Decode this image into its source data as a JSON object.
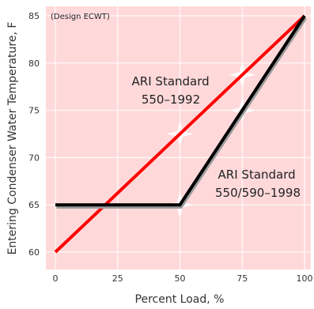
{
  "chart_data": {
    "type": "line",
    "xlabel": "Percent Load, %",
    "ylabel": "Entering Condenser Water Temperature, F",
    "xlim": [
      0,
      100
    ],
    "ylim": [
      59,
      86
    ],
    "x_ticks": [
      "0",
      "25",
      "50",
      "75",
      "100"
    ],
    "y_ticks": [
      "60",
      "65",
      "70",
      "75",
      "80",
      "85"
    ],
    "x_tick_values": [
      0,
      25,
      50,
      75,
      100
    ],
    "y_tick_values": [
      60,
      65,
      70,
      75,
      80,
      85
    ],
    "grid": true,
    "background_color": "#ffd9da",
    "grid_color": "#ffffff",
    "design_note": "(Design ECWT)",
    "series": [
      {
        "label": "ARI Standard\n550–1992",
        "color": "#ff0000",
        "points": [
          [
            0,
            60
          ],
          [
            100,
            85
          ]
        ]
      },
      {
        "label": "ARI Standard\n550/590–1998",
        "color": "#000000",
        "points": [
          [
            0,
            65
          ],
          [
            50,
            65
          ],
          [
            100,
            85
          ]
        ]
      }
    ],
    "annotations": [
      {
        "lines": [
          "ARI Standard",
          "550–1992"
        ]
      },
      {
        "lines": [
          "ARI Standard",
          "550/590–1998"
        ]
      }
    ],
    "star_markers": [
      [
        50,
        72.5
      ],
      [
        75,
        78.75
      ],
      [
        50,
        65
      ],
      [
        75,
        75
      ]
    ]
  }
}
